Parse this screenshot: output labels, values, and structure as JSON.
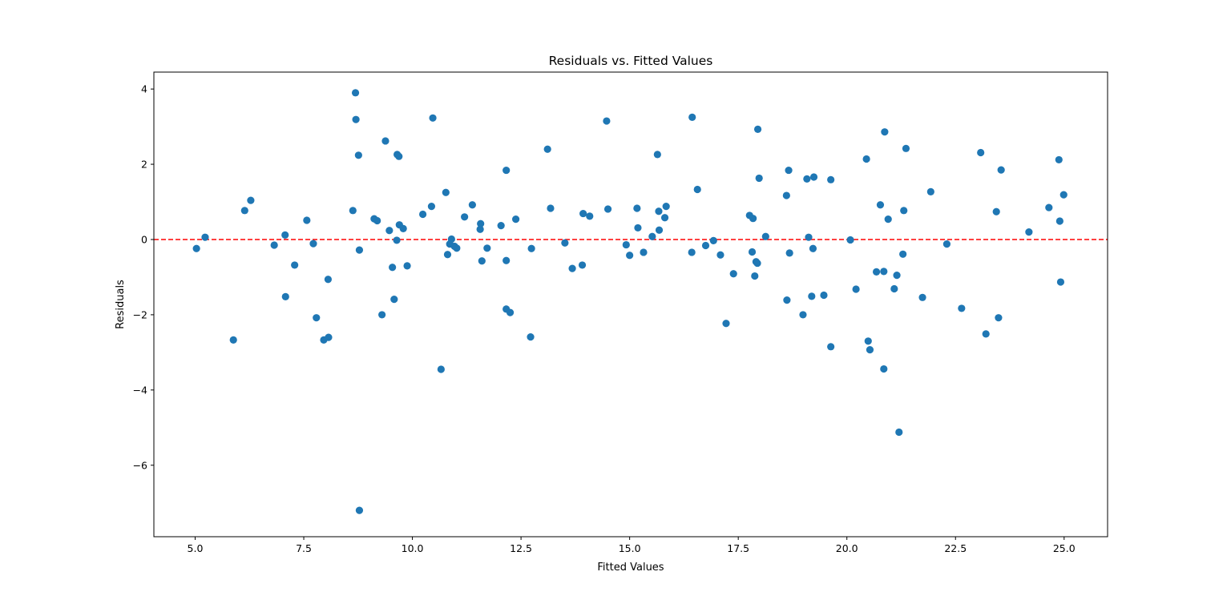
{
  "chart_data": {
    "type": "scatter",
    "title": "Residuals vs. Fitted Values",
    "xlabel": "Fitted Values",
    "ylabel": "Residuals",
    "xlim": [
      4.05,
      26.0
    ],
    "ylim": [
      -7.9,
      4.45
    ],
    "xticks": [
      5.0,
      7.5,
      10.0,
      12.5,
      15.0,
      17.5,
      20.0,
      22.5,
      25.0
    ],
    "xtick_labels": [
      "5.0",
      "7.5",
      "10.0",
      "12.5",
      "15.0",
      "17.5",
      "20.0",
      "22.5",
      "25.0"
    ],
    "yticks": [
      4,
      2,
      0,
      -2,
      -4,
      -6
    ],
    "ytick_labels": [
      "4",
      "2",
      "0",
      "−2",
      "−4",
      "−6"
    ],
    "grid": false,
    "reference_line": {
      "y": 0,
      "color": "#ff0000",
      "style": "dashed"
    },
    "marker_color": "#1f77b4",
    "points": [
      [
        5.03,
        -0.24
      ],
      [
        5.23,
        0.06
      ],
      [
        5.88,
        -2.67
      ],
      [
        6.14,
        0.77
      ],
      [
        6.28,
        1.04
      ],
      [
        6.82,
        -0.15
      ],
      [
        7.07,
        0.12
      ],
      [
        7.08,
        -1.52
      ],
      [
        7.29,
        -0.68
      ],
      [
        7.57,
        0.51
      ],
      [
        7.72,
        -0.11
      ],
      [
        7.79,
        -2.08
      ],
      [
        7.96,
        -2.67
      ],
      [
        8.06,
        -1.06
      ],
      [
        8.07,
        -2.6
      ],
      [
        8.63,
        0.77
      ],
      [
        8.69,
        3.9
      ],
      [
        8.7,
        3.19
      ],
      [
        8.76,
        2.24
      ],
      [
        8.78,
        -0.28
      ],
      [
        8.78,
        -7.2
      ],
      [
        9.12,
        0.55
      ],
      [
        9.19,
        0.5
      ],
      [
        9.3,
        -2.0
      ],
      [
        9.38,
        2.62
      ],
      [
        9.47,
        0.24
      ],
      [
        9.54,
        -0.74
      ],
      [
        9.58,
        -1.59
      ],
      [
        9.65,
        2.26
      ],
      [
        9.64,
        -0.02
      ],
      [
        9.69,
        2.21
      ],
      [
        9.7,
        0.39
      ],
      [
        9.79,
        0.29
      ],
      [
        9.88,
        -0.7
      ],
      [
        10.24,
        0.67
      ],
      [
        10.44,
        0.88
      ],
      [
        10.47,
        3.23
      ],
      [
        10.66,
        -3.45
      ],
      [
        10.77,
        1.25
      ],
      [
        10.81,
        -0.4
      ],
      [
        10.86,
        -0.12
      ],
      [
        10.9,
        0.01
      ],
      [
        10.97,
        -0.18
      ],
      [
        11.02,
        -0.23
      ],
      [
        11.2,
        0.6
      ],
      [
        11.38,
        0.92
      ],
      [
        11.56,
        0.27
      ],
      [
        11.57,
        0.42
      ],
      [
        11.6,
        -0.57
      ],
      [
        11.72,
        -0.23
      ],
      [
        12.04,
        0.37
      ],
      [
        12.16,
        1.84
      ],
      [
        12.16,
        -0.56
      ],
      [
        12.16,
        -1.85
      ],
      [
        12.25,
        -1.94
      ],
      [
        12.38,
        0.54
      ],
      [
        12.72,
        -2.59
      ],
      [
        12.74,
        -0.24
      ],
      [
        13.11,
        2.4
      ],
      [
        13.18,
        0.83
      ],
      [
        13.51,
        -0.09
      ],
      [
        13.68,
        -0.77
      ],
      [
        13.91,
        -0.68
      ],
      [
        13.93,
        0.69
      ],
      [
        14.08,
        0.62
      ],
      [
        14.47,
        3.15
      ],
      [
        14.5,
        0.81
      ],
      [
        14.92,
        -0.14
      ],
      [
        15.0,
        -0.42
      ],
      [
        15.17,
        0.83
      ],
      [
        15.19,
        0.31
      ],
      [
        15.32,
        -0.34
      ],
      [
        15.52,
        0.08
      ],
      [
        15.64,
        2.26
      ],
      [
        15.67,
        0.75
      ],
      [
        15.68,
        0.25
      ],
      [
        15.81,
        0.58
      ],
      [
        15.84,
        0.88
      ],
      [
        16.43,
        -0.34
      ],
      [
        16.44,
        3.25
      ],
      [
        16.56,
        1.33
      ],
      [
        16.75,
        -0.16
      ],
      [
        16.93,
        -0.03
      ],
      [
        17.09,
        -0.41
      ],
      [
        17.22,
        -2.23
      ],
      [
        17.39,
        -0.91
      ],
      [
        17.76,
        0.64
      ],
      [
        17.82,
        -0.33
      ],
      [
        17.84,
        0.56
      ],
      [
        17.88,
        -0.97
      ],
      [
        17.91,
        -0.59
      ],
      [
        17.94,
        -0.63
      ],
      [
        17.95,
        2.93
      ],
      [
        17.98,
        1.63
      ],
      [
        18.13,
        0.08
      ],
      [
        18.61,
        1.17
      ],
      [
        18.62,
        -1.61
      ],
      [
        18.66,
        1.84
      ],
      [
        18.68,
        -0.36
      ],
      [
        18.99,
        -2.0
      ],
      [
        19.08,
        1.61
      ],
      [
        19.12,
        0.06
      ],
      [
        19.19,
        -1.51
      ],
      [
        19.24,
        1.66
      ],
      [
        19.22,
        -0.24
      ],
      [
        19.47,
        -1.48
      ],
      [
        19.63,
        -2.85
      ],
      [
        19.63,
        1.59
      ],
      [
        20.08,
        -0.01
      ],
      [
        20.21,
        -1.32
      ],
      [
        20.45,
        2.14
      ],
      [
        20.49,
        -2.7
      ],
      [
        20.53,
        -2.93
      ],
      [
        20.68,
        -0.86
      ],
      [
        20.77,
        0.92
      ],
      [
        20.85,
        -0.85
      ],
      [
        20.85,
        -3.44
      ],
      [
        20.87,
        2.86
      ],
      [
        20.95,
        0.54
      ],
      [
        21.09,
        -1.31
      ],
      [
        21.15,
        -0.95
      ],
      [
        21.2,
        -5.12
      ],
      [
        21.29,
        -0.39
      ],
      [
        21.31,
        0.77
      ],
      [
        21.36,
        2.42
      ],
      [
        21.74,
        -1.54
      ],
      [
        21.93,
        1.27
      ],
      [
        22.3,
        -0.12
      ],
      [
        22.64,
        -1.83
      ],
      [
        23.08,
        2.31
      ],
      [
        23.2,
        -2.51
      ],
      [
        23.44,
        0.74
      ],
      [
        23.49,
        -2.08
      ],
      [
        23.55,
        1.85
      ],
      [
        24.19,
        0.2
      ],
      [
        24.65,
        0.85
      ],
      [
        24.88,
        2.12
      ],
      [
        24.9,
        0.49
      ],
      [
        24.92,
        -1.13
      ],
      [
        24.99,
        1.19
      ]
    ]
  }
}
